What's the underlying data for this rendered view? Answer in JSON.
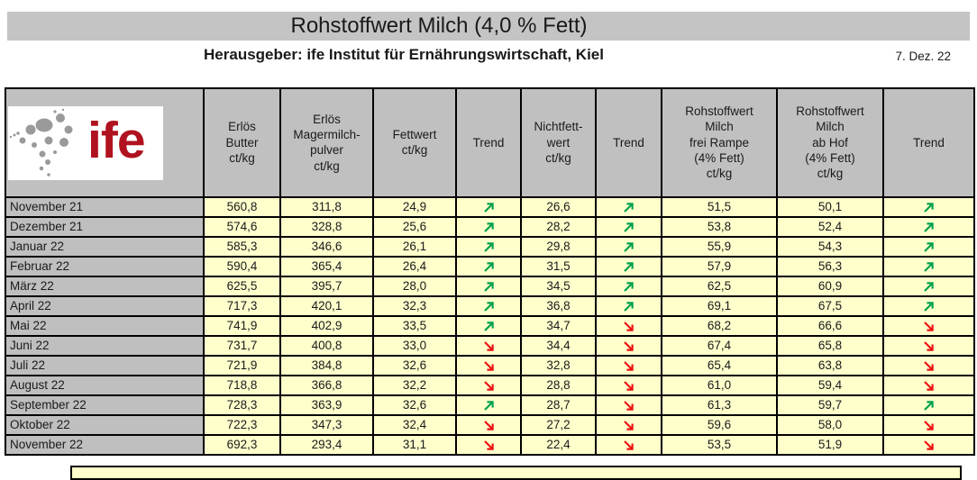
{
  "page": {
    "title": "Rohstoffwert Milch (4,0 % Fett)",
    "publisher_line": "Herausgeber: ife Institut für Ernährungswirtschaft, Kiel",
    "date": "7. Dez. 22"
  },
  "logo": {
    "text": "ife"
  },
  "colors": {
    "title_bar_bg": "#c4c4c4",
    "header_bg": "#c0c0c0",
    "month_bg": "#bfbfbf",
    "value_bg": "#ffffcc",
    "trend_up": "#00a14b",
    "trend_down": "#ee1111",
    "logo_red": "#b0121f",
    "logo_dot_gray": "#9a9a9a"
  },
  "table": {
    "headers": [
      "",
      "Erlös\nButter\nct/kg",
      "Erlös\nMagermilch-\npulver\nct/kg",
      "Fettwert\nct/kg",
      "Trend",
      "Nichtfett-\nwert\nct/kg",
      "Trend",
      "Rohstoffwert\nMilch\nfrei Rampe\n(4% Fett)\nct/kg",
      "Rohstoffwert\nMilch\nab Hof\n(4% Fett)\nct/kg",
      "Trend"
    ],
    "trend_up_symbol": "↗",
    "trend_down_symbol": "↘",
    "rows": [
      {
        "month": "November 21",
        "values": [
          "560,8",
          "311,8",
          "24,9",
          "up",
          "26,6",
          "up",
          "51,5",
          "50,1",
          "up"
        ]
      },
      {
        "month": "Dezember 21",
        "values": [
          "574,6",
          "328,8",
          "25,6",
          "up",
          "28,2",
          "up",
          "53,8",
          "52,4",
          "up"
        ]
      },
      {
        "month": "Januar 22",
        "values": [
          "585,3",
          "346,6",
          "26,1",
          "up",
          "29,8",
          "up",
          "55,9",
          "54,3",
          "up"
        ]
      },
      {
        "month": "Februar 22",
        "values": [
          "590,4",
          "365,4",
          "26,4",
          "up",
          "31,5",
          "up",
          "57,9",
          "56,3",
          "up"
        ]
      },
      {
        "month": "März 22",
        "values": [
          "625,5",
          "395,7",
          "28,0",
          "up",
          "34,5",
          "up",
          "62,5",
          "60,9",
          "up"
        ]
      },
      {
        "month": "April 22",
        "values": [
          "717,3",
          "420,1",
          "32,3",
          "up",
          "36,8",
          "up",
          "69,1",
          "67,5",
          "up"
        ]
      },
      {
        "month": "Mai 22",
        "values": [
          "741,9",
          "402,9",
          "33,5",
          "up",
          "34,7",
          "down",
          "68,2",
          "66,6",
          "down"
        ]
      },
      {
        "month": "Juni 22",
        "values": [
          "731,7",
          "400,8",
          "33,0",
          "down",
          "34,4",
          "down",
          "67,4",
          "65,8",
          "down"
        ]
      },
      {
        "month": "Juli 22",
        "values": [
          "721,9",
          "384,8",
          "32,6",
          "down",
          "32,8",
          "down",
          "65,4",
          "63,8",
          "down"
        ]
      },
      {
        "month": "August 22",
        "values": [
          "718,8",
          "366,8",
          "32,2",
          "down",
          "28,8",
          "down",
          "61,0",
          "59,4",
          "down"
        ]
      },
      {
        "month": "September 22",
        "values": [
          "728,3",
          "363,9",
          "32,6",
          "up",
          "28,7",
          "down",
          "61,3",
          "59,7",
          "up"
        ]
      },
      {
        "month": "Oktober 22",
        "values": [
          "722,3",
          "347,3",
          "32,4",
          "down",
          "27,2",
          "down",
          "59,6",
          "58,0",
          "down"
        ]
      },
      {
        "month": "November 22",
        "values": [
          "692,3",
          "293,4",
          "31,1",
          "down",
          "22,4",
          "down",
          "53,5",
          "51,9",
          "down"
        ]
      }
    ]
  }
}
